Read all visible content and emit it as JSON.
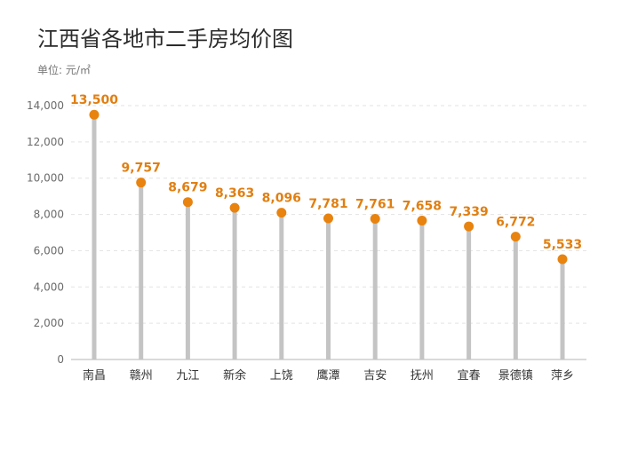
{
  "chart_data": {
    "type": "lollipop",
    "title": "江西省各地市二手房均价图",
    "unit": "单位: 元/㎡",
    "categories": [
      "南昌",
      "赣州",
      "九江",
      "新余",
      "上饶",
      "鹰潭",
      "吉安",
      "抚州",
      "宜春",
      "景德镇",
      "萍乡"
    ],
    "values": [
      13500,
      9757,
      8679,
      8363,
      8096,
      7781,
      7761,
      7658,
      7339,
      6772,
      5533
    ],
    "value_labels": [
      "13,500",
      "9,757",
      "8,679",
      "8,363",
      "8,096",
      "7,781",
      "7,761",
      "7,658",
      "7,339",
      "6,772",
      "5,533"
    ],
    "ylim": [
      0,
      14000
    ],
    "yticks": [
      0,
      2000,
      4000,
      6000,
      8000,
      10000,
      12000,
      14000
    ],
    "ytick_labels": [
      "0",
      "2,000",
      "4,000",
      "6,000",
      "8,000",
      "10,000",
      "12,000",
      "14,000"
    ],
    "grid": true,
    "colors": {
      "stem": "#c4c4c4",
      "dot": "#e8830f",
      "label": "#e07f12",
      "grid": "#e3e3e3",
      "axis": "#b5b5b5"
    }
  }
}
